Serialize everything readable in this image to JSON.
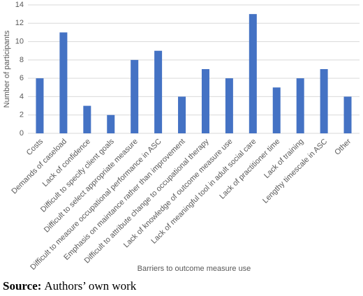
{
  "chart_data": {
    "type": "bar",
    "categories": [
      "Costs",
      "Demands of caseload",
      "Lack of confidence",
      "Difficult to specify client goals",
      "Difficult to select appropriate measure",
      "Difficult to measure occupational performance in ASC",
      "Emphasis on maintance rather than improvement",
      "Difficult to attribute change to occupational therapy",
      "Lack of knowledge of outcome measure use",
      "Lack of meaningful tool in adult social care",
      "Lack of practitioner time",
      "Lack of training",
      "Lengthy timescale in ASC",
      "Other"
    ],
    "values": [
      6,
      11,
      3,
      2,
      8,
      9,
      4,
      7,
      6,
      13,
      5,
      6,
      7,
      4
    ],
    "color": "#4472c4",
    "ylim": [
      0,
      14
    ],
    "yticks": [
      0,
      2,
      4,
      6,
      8,
      10,
      12,
      14
    ],
    "grid": true,
    "ylabel": "Number of participants",
    "xlabel": "Barriers to outcome measure use",
    "source": {
      "label": "Source:",
      "text": "Authors’ own work"
    }
  }
}
